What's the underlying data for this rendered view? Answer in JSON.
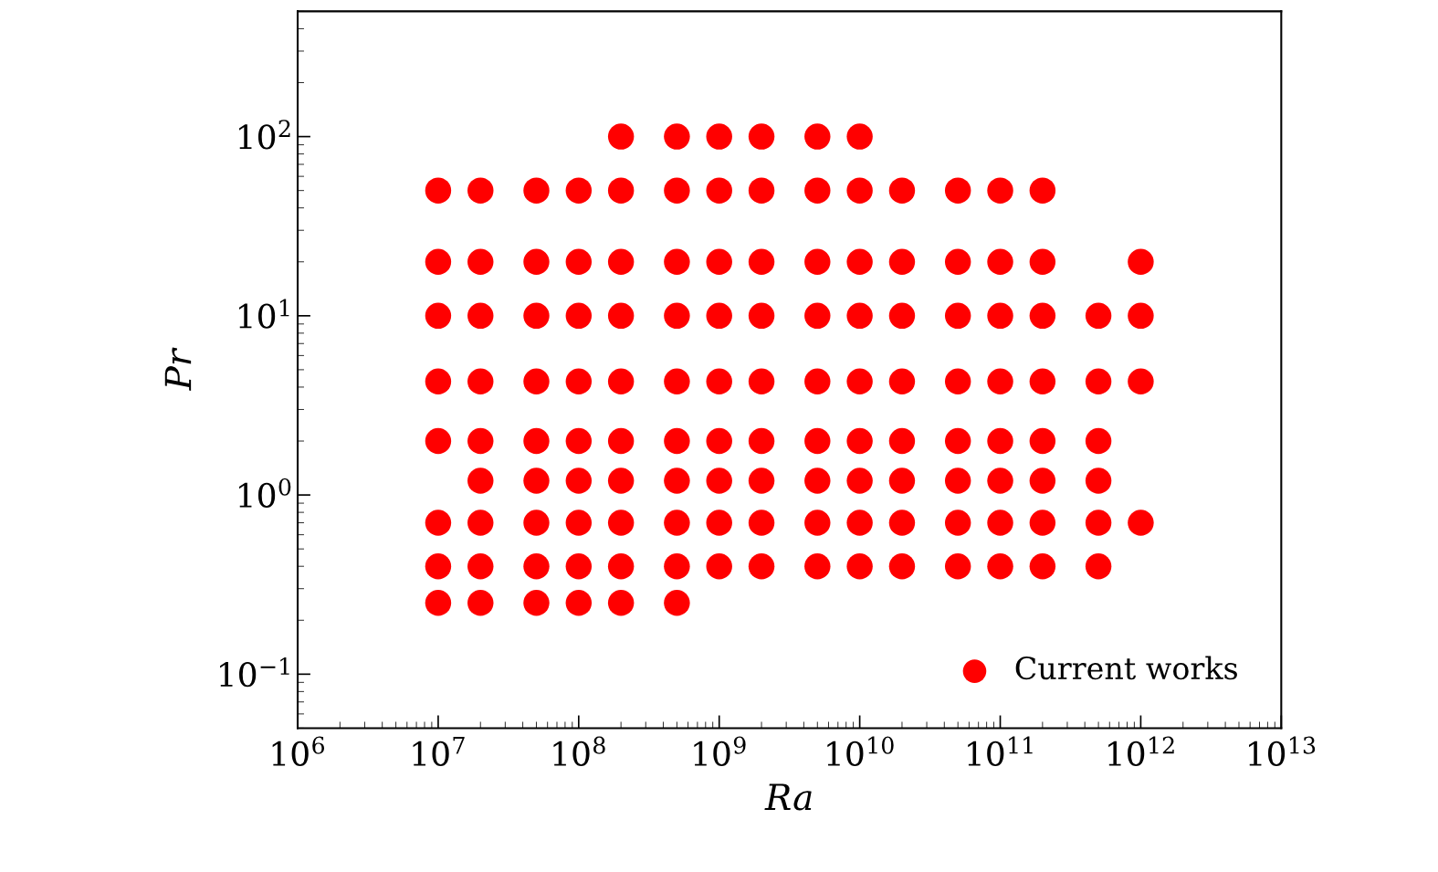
{
  "chart_data": {
    "type": "scatter",
    "xlabel": "Ra",
    "ylabel": "Pr",
    "log": "xy",
    "grid": false,
    "legend": "bottom right",
    "marker": "circle",
    "xlim": [
      1000000.0,
      10000000000000.0
    ],
    "ylim": [
      0.05,
      500
    ],
    "xticks": [
      {
        "value": 1000000.0,
        "label": "10$^{6}$"
      },
      {
        "value": 10000000.0,
        "label": "10$^{7}$"
      },
      {
        "value": 100000000.0,
        "label": "10$^{8}$"
      },
      {
        "value": 1000000000.0,
        "label": "10$^{9}$"
      },
      {
        "value": 10000000000.0,
        "label": "10$^{10}$"
      },
      {
        "value": 100000000000.0,
        "label": "10$^{11}$"
      },
      {
        "value": 1000000000000.0,
        "label": "10$^{12}$"
      },
      {
        "value": 10000000000000.0,
        "label": "10$^{13}$"
      }
    ],
    "yticks": [
      {
        "value": 0.1,
        "label": "10$^{−1}$"
      },
      {
        "value": 1,
        "label": "10$^{0}$"
      },
      {
        "value": 10,
        "label": "10$^{1}$"
      },
      {
        "value": 100,
        "label": "10$^{2}$"
      }
    ],
    "series": [
      {
        "name": "Current works",
        "color": "#ff0000",
        "x": [
          200000000.0,
          500000000.0,
          1000000000.0,
          2000000000.0,
          5000000000.0,
          10000000000.0,
          10000000.0,
          20000000.0,
          50000000.0,
          100000000.0,
          200000000.0,
          500000000.0,
          1000000000.0,
          2000000000.0,
          5000000000.0,
          10000000000.0,
          20000000000.0,
          50000000000.0,
          100000000000.0,
          200000000000.0,
          10000000.0,
          20000000.0,
          50000000.0,
          100000000.0,
          200000000.0,
          500000000.0,
          1000000000.0,
          2000000000.0,
          5000000000.0,
          10000000000.0,
          20000000000.0,
          50000000000.0,
          100000000000.0,
          200000000000.0,
          1000000000000.0,
          10000000.0,
          20000000.0,
          50000000.0,
          100000000.0,
          200000000.0,
          500000000.0,
          1000000000.0,
          2000000000.0,
          5000000000.0,
          10000000000.0,
          20000000000.0,
          50000000000.0,
          100000000000.0,
          200000000000.0,
          500000000000.0,
          1000000000000.0,
          10000000.0,
          20000000.0,
          50000000.0,
          100000000.0,
          200000000.0,
          500000000.0,
          1000000000.0,
          2000000000.0,
          5000000000.0,
          10000000000.0,
          20000000000.0,
          50000000000.0,
          100000000000.0,
          200000000000.0,
          500000000000.0,
          1000000000000.0,
          10000000.0,
          20000000.0,
          50000000.0,
          100000000.0,
          200000000.0,
          500000000.0,
          1000000000.0,
          2000000000.0,
          5000000000.0,
          10000000000.0,
          20000000000.0,
          50000000000.0,
          100000000000.0,
          200000000000.0,
          500000000000.0,
          20000000.0,
          50000000.0,
          100000000.0,
          200000000.0,
          500000000.0,
          1000000000.0,
          2000000000.0,
          5000000000.0,
          10000000000.0,
          20000000000.0,
          50000000000.0,
          100000000000.0,
          200000000000.0,
          500000000000.0,
          10000000.0,
          20000000.0,
          50000000.0,
          100000000.0,
          200000000.0,
          500000000.0,
          1000000000.0,
          2000000000.0,
          5000000000.0,
          10000000000.0,
          20000000000.0,
          50000000000.0,
          100000000000.0,
          200000000000.0,
          500000000000.0,
          1000000000000.0,
          10000000.0,
          20000000.0,
          50000000.0,
          100000000.0,
          200000000.0,
          500000000.0,
          1000000000.0,
          2000000000.0,
          5000000000.0,
          10000000000.0,
          20000000000.0,
          50000000000.0,
          100000000000.0,
          200000000000.0,
          500000000000.0,
          10000000.0,
          20000000.0,
          50000000.0,
          100000000.0,
          200000000.0,
          500000000.0
        ],
        "values": [
          100,
          100,
          100,
          100,
          100,
          100,
          50,
          50,
          50,
          50,
          50,
          50,
          50,
          50,
          50,
          50,
          50,
          50,
          50,
          50,
          20,
          20,
          20,
          20,
          20,
          20,
          20,
          20,
          20,
          20,
          20,
          20,
          20,
          20,
          20,
          10,
          10,
          10,
          10,
          10,
          10,
          10,
          10,
          10,
          10,
          10,
          10,
          10,
          10,
          10,
          10,
          4.3,
          4.3,
          4.3,
          4.3,
          4.3,
          4.3,
          4.3,
          4.3,
          4.3,
          4.3,
          4.3,
          4.3,
          4.3,
          4.3,
          4.3,
          4.3,
          2,
          2,
          2,
          2,
          2,
          2,
          2,
          2,
          2,
          2,
          2,
          2,
          2,
          2,
          2,
          1.2,
          1.2,
          1.2,
          1.2,
          1.2,
          1.2,
          1.2,
          1.2,
          1.2,
          1.2,
          1.2,
          1.2,
          1.2,
          1.2,
          0.7,
          0.7,
          0.7,
          0.7,
          0.7,
          0.7,
          0.7,
          0.7,
          0.7,
          0.7,
          0.7,
          0.7,
          0.7,
          0.7,
          0.7,
          0.7,
          0.4,
          0.4,
          0.4,
          0.4,
          0.4,
          0.4,
          0.4,
          0.4,
          0.4,
          0.4,
          0.4,
          0.4,
          0.4,
          0.4,
          0.4,
          0.25,
          0.25,
          0.25,
          0.25,
          0.25,
          0.25
        ]
      }
    ]
  }
}
